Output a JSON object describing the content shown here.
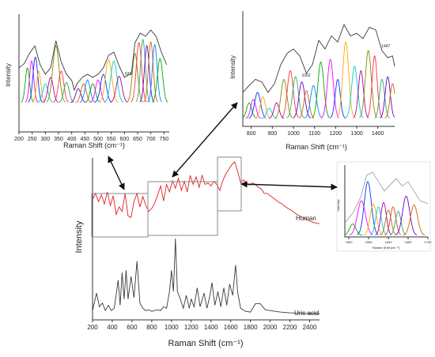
{
  "chart_data": [
    {
      "id": "main",
      "type": "line",
      "xlabel": "Raman Shift (cm⁻¹)",
      "ylabel": "Intensity",
      "xlim": [
        200,
        2500
      ],
      "xticks": [
        200,
        400,
        600,
        800,
        1000,
        1200,
        1400,
        1600,
        1800,
        2000,
        2200,
        2400
      ],
      "series": [
        {
          "name": "Human",
          "color": "#e02020",
          "x": [
            200,
            230,
            260,
            290,
            320,
            350,
            380,
            410,
            440,
            470,
            500,
            530,
            560,
            590,
            620,
            650,
            680,
            710,
            740,
            770,
            800,
            830,
            860,
            890,
            920,
            950,
            980,
            1010,
            1040,
            1070,
            1100,
            1130,
            1160,
            1190,
            1220,
            1250,
            1280,
            1310,
            1340,
            1370,
            1400,
            1430,
            1460,
            1490,
            1520,
            1550,
            1580,
            1610,
            1640,
            1670,
            1700,
            1730,
            1760,
            1790,
            1820,
            1850,
            1880,
            1910,
            1940,
            1970,
            2000,
            2030,
            2060,
            2090,
            2120,
            2150,
            2180,
            2210,
            2240,
            2270,
            2300,
            2330,
            2360,
            2390,
            2420,
            2450,
            2480,
            2500
          ],
          "y": [
            0.5,
            0.58,
            0.47,
            0.56,
            0.44,
            0.6,
            0.42,
            0.55,
            0.3,
            0.4,
            0.34,
            0.58,
            0.28,
            0.26,
            0.47,
            0.58,
            0.4,
            0.54,
            0.42,
            0.34,
            0.38,
            0.45,
            0.56,
            0.68,
            0.48,
            0.7,
            0.6,
            0.75,
            0.65,
            0.78,
            0.62,
            0.74,
            0.6,
            0.82,
            0.7,
            0.8,
            0.66,
            0.82,
            0.7,
            0.72,
            0.68,
            0.74,
            0.7,
            0.62,
            0.75,
            0.84,
            0.9,
            0.96,
            1.0,
            0.88,
            0.72,
            0.76,
            0.72,
            0.69,
            0.72,
            0.7,
            0.66,
            0.64,
            0.58,
            0.58,
            0.55,
            0.52,
            0.49,
            0.46,
            0.44,
            0.41,
            0.38,
            0.36,
            0.33,
            0.3,
            0.28,
            0.26,
            0.24,
            0.22,
            0.2,
            0.19,
            0.18,
            0.18
          ]
        },
        {
          "name": "Uric acid",
          "color": "#3a3a3a",
          "x": [
            200,
            240,
            270,
            300,
            330,
            360,
            390,
            420,
            460,
            480,
            500,
            520,
            540,
            560,
            590,
            620,
            650,
            680,
            710,
            740,
            770,
            800,
            830,
            860,
            890,
            920,
            950,
            980,
            1000,
            1020,
            1040,
            1060,
            1090,
            1120,
            1150,
            1180,
            1200,
            1230,
            1260,
            1290,
            1330,
            1360,
            1390,
            1410,
            1440,
            1470,
            1500,
            1530,
            1560,
            1590,
            1620,
            1650,
            1670,
            1700,
            1750,
            1800,
            1850,
            1900,
            1950,
            2000,
            2050,
            2100,
            2200,
            2300,
            2400,
            2500
          ],
          "y": [
            0.05,
            0.28,
            0.1,
            0.15,
            0.05,
            0.12,
            0.05,
            0.08,
            0.45,
            0.12,
            0.55,
            0.2,
            0.58,
            0.2,
            0.5,
            0.22,
            0.7,
            0.15,
            0.08,
            0.05,
            0.06,
            0.04,
            0.05,
            0.06,
            0.05,
            0.1,
            0.08,
            0.3,
            0.58,
            0.3,
            1.0,
            0.3,
            0.2,
            0.08,
            0.25,
            0.08,
            0.2,
            0.1,
            0.35,
            0.1,
            0.28,
            0.08,
            0.25,
            0.42,
            0.12,
            0.3,
            0.1,
            0.35,
            0.12,
            0.4,
            0.25,
            0.65,
            0.3,
            0.08,
            0.04,
            0.03,
            0.14,
            0.14,
            0.06,
            0.05,
            0.04,
            0.03,
            0.02,
            0.015,
            0.01,
            0.01
          ]
        }
      ],
      "annotations": [
        "Human",
        "Uric acid"
      ]
    },
    {
      "id": "zoom1",
      "type": "line",
      "xlabel": "Raman Shift (cm⁻¹)",
      "ylabel": "Intensity",
      "xlim": [
        200,
        770
      ],
      "xticks": [
        200,
        250,
        300,
        350,
        400,
        450,
        500,
        550,
        600,
        650,
        700,
        750
      ],
      "annotations": [
        "626"
      ],
      "envelope": {
        "x": [
          200,
          220,
          240,
          260,
          280,
          300,
          320,
          340,
          360,
          380,
          400,
          410,
          420,
          440,
          460,
          480,
          500,
          520,
          540,
          560,
          580,
          600,
          620,
          626,
          640,
          660,
          680,
          700,
          720,
          740,
          760
        ],
        "y": [
          0.55,
          0.62,
          0.78,
          0.9,
          0.6,
          0.45,
          0.55,
          0.98,
          0.65,
          0.45,
          0.35,
          0.2,
          0.3,
          0.4,
          0.45,
          0.4,
          0.45,
          0.55,
          0.75,
          0.8,
          0.58,
          0.4,
          0.45,
          0.45,
          0.95,
          1.1,
          1.05,
          1.15,
          1.05,
          0.8,
          0.6
        ]
      },
      "peaks": [
        {
          "center": 232,
          "height": 0.55,
          "width": 8
        },
        {
          "center": 248,
          "height": 0.66,
          "width": 8
        },
        {
          "center": 262,
          "height": 0.72,
          "width": 9
        },
        {
          "center": 275,
          "height": 0.5,
          "width": 8
        },
        {
          "center": 300,
          "height": 0.3,
          "width": 10
        },
        {
          "center": 320,
          "height": 0.4,
          "width": 10
        },
        {
          "center": 340,
          "height": 0.9,
          "width": 12
        },
        {
          "center": 360,
          "height": 0.5,
          "width": 10
        },
        {
          "center": 380,
          "height": 0.32,
          "width": 10
        },
        {
          "center": 425,
          "height": 0.22,
          "width": 10
        },
        {
          "center": 445,
          "height": 0.3,
          "width": 10
        },
        {
          "center": 460,
          "height": 0.36,
          "width": 10
        },
        {
          "center": 480,
          "height": 0.3,
          "width": 10
        },
        {
          "center": 500,
          "height": 0.36,
          "width": 10
        },
        {
          "center": 520,
          "height": 0.45,
          "width": 11
        },
        {
          "center": 540,
          "height": 0.68,
          "width": 12
        },
        {
          "center": 560,
          "height": 0.66,
          "width": 12
        },
        {
          "center": 580,
          "height": 0.42,
          "width": 11
        },
        {
          "center": 640,
          "height": 0.78,
          "width": 10
        },
        {
          "center": 655,
          "height": 0.95,
          "width": 10
        },
        {
          "center": 670,
          "height": 1.0,
          "width": 9
        },
        {
          "center": 685,
          "height": 0.9,
          "width": 9
        },
        {
          "center": 700,
          "height": 0.96,
          "width": 9
        },
        {
          "center": 715,
          "height": 0.92,
          "width": 9
        },
        {
          "center": 735,
          "height": 0.7,
          "width": 10
        }
      ]
    },
    {
      "id": "zoom2",
      "type": "line",
      "xlabel": "Raman Shift (cm⁻¹)",
      "ylabel": "Intensity",
      "xlim": [
        760,
        1480
      ],
      "xticks": [
        800,
        900,
        1000,
        1100,
        1200,
        1300,
        1400
      ],
      "annotations": [
        "1062",
        "1447"
      ],
      "envelope": {
        "x": [
          760,
          790,
          820,
          850,
          880,
          910,
          940,
          970,
          1000,
          1030,
          1062,
          1090,
          1120,
          1150,
          1180,
          1210,
          1240,
          1270,
          1300,
          1330,
          1360,
          1390,
          1420,
          1447,
          1470,
          1480
        ],
        "y": [
          0.3,
          0.38,
          0.45,
          0.42,
          0.3,
          0.4,
          0.62,
          0.75,
          0.8,
          0.72,
          0.52,
          0.62,
          0.9,
          0.8,
          0.95,
          0.88,
          1.08,
          0.95,
          0.98,
          0.92,
          1.05,
          1.02,
          0.78,
          0.7,
          0.72,
          0.6
        ]
      },
      "peaks": [
        {
          "center": 790,
          "height": 0.18,
          "width": 12
        },
        {
          "center": 810,
          "height": 0.22,
          "width": 12
        },
        {
          "center": 830,
          "height": 0.3,
          "width": 14
        },
        {
          "center": 855,
          "height": 0.25,
          "width": 12
        },
        {
          "center": 885,
          "height": 0.12,
          "width": 12
        },
        {
          "center": 920,
          "height": 0.18,
          "width": 12
        },
        {
          "center": 955,
          "height": 0.45,
          "width": 14
        },
        {
          "center": 985,
          "height": 0.55,
          "width": 14
        },
        {
          "center": 1010,
          "height": 0.48,
          "width": 14
        },
        {
          "center": 1040,
          "height": 0.42,
          "width": 14
        },
        {
          "center": 1062,
          "height": 0.32,
          "width": 12
        },
        {
          "center": 1095,
          "height": 0.38,
          "width": 14
        },
        {
          "center": 1130,
          "height": 0.65,
          "width": 14
        },
        {
          "center": 1175,
          "height": 0.68,
          "width": 14
        },
        {
          "center": 1210,
          "height": 0.45,
          "width": 12
        },
        {
          "center": 1248,
          "height": 0.88,
          "width": 14
        },
        {
          "center": 1290,
          "height": 0.6,
          "width": 14
        },
        {
          "center": 1320,
          "height": 0.55,
          "width": 12
        },
        {
          "center": 1355,
          "height": 0.78,
          "width": 14
        },
        {
          "center": 1385,
          "height": 0.72,
          "width": 12
        },
        {
          "center": 1420,
          "height": 0.45,
          "width": 12
        },
        {
          "center": 1447,
          "height": 0.48,
          "width": 12
        },
        {
          "center": 1470,
          "height": 0.4,
          "width": 12
        }
      ]
    },
    {
      "id": "zoom3",
      "type": "line",
      "xlabel": "Raman Shift (cm⁻¹)",
      "ylabel": "Intensity",
      "xlim": [
        1490,
        1700
      ],
      "xticks": [
        1500,
        1550,
        1600,
        1650,
        1700
      ],
      "envelope": {
        "x": [
          1490,
          1510,
          1530,
          1545,
          1560,
          1575,
          1590,
          1605,
          1620,
          1635,
          1650,
          1665,
          1680,
          1700
        ],
        "y": [
          0.2,
          0.35,
          0.6,
          0.95,
          1.0,
          0.85,
          0.7,
          0.8,
          0.9,
          0.78,
          0.85,
          0.7,
          0.55,
          0.5
        ]
      },
      "peaks": [
        {
          "center": 1510,
          "height": 0.18,
          "width": 8
        },
        {
          "center": 1532,
          "height": 0.55,
          "width": 10
        },
        {
          "center": 1548,
          "height": 0.85,
          "width": 9
        },
        {
          "center": 1562,
          "height": 0.5,
          "width": 8
        },
        {
          "center": 1575,
          "height": 0.45,
          "width": 7
        },
        {
          "center": 1588,
          "height": 0.52,
          "width": 7
        },
        {
          "center": 1600,
          "height": 0.4,
          "width": 7
        },
        {
          "center": 1612,
          "height": 0.45,
          "width": 7
        },
        {
          "center": 1625,
          "height": 0.38,
          "width": 7
        },
        {
          "center": 1645,
          "height": 0.62,
          "width": 9
        },
        {
          "center": 1665,
          "height": 0.48,
          "width": 9
        }
      ]
    }
  ],
  "peak_colors": [
    "#00aa00",
    "#ff00ff",
    "#0033ff",
    "#ffaa00",
    "#00cccc",
    "#aa00aa",
    "#888800",
    "#ff3333",
    "#33aa66",
    "#6600cc",
    "#cc6600",
    "#0088ff"
  ]
}
